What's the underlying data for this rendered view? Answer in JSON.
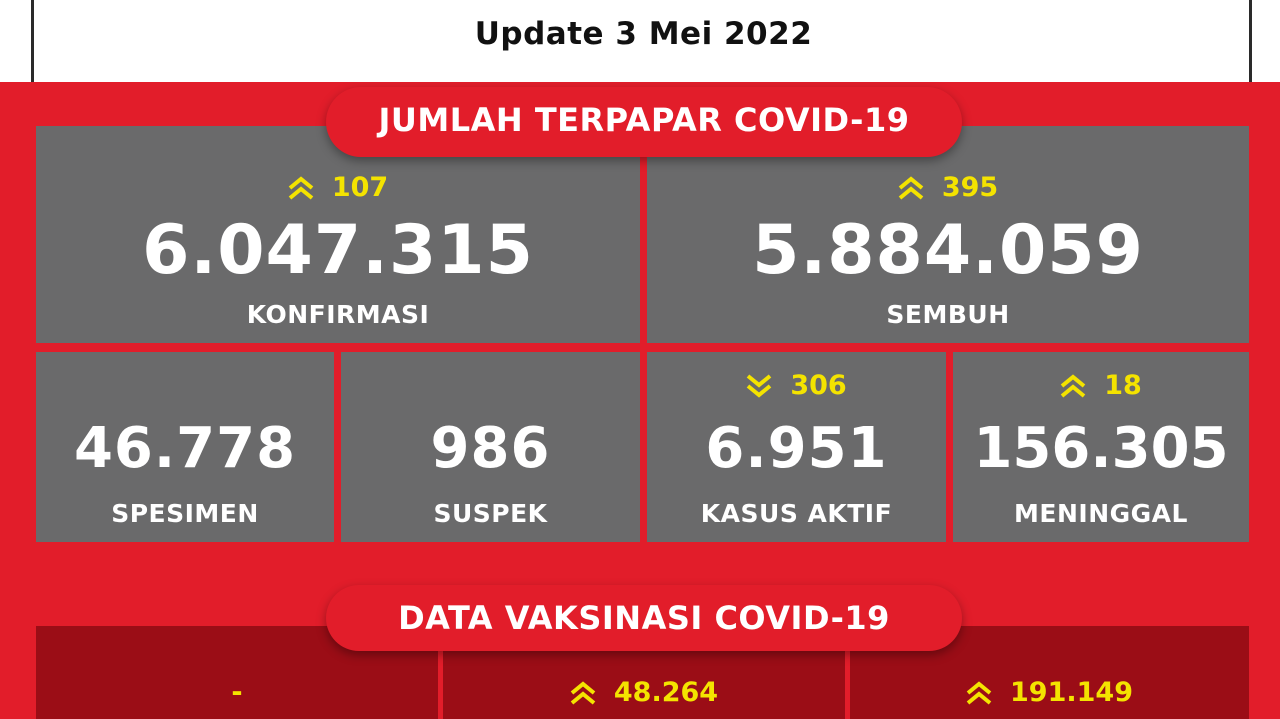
{
  "header": {
    "update": "Update 3 Mei 2022"
  },
  "section1": {
    "title": "JUMLAH TERPAPAR COVID-19"
  },
  "stats": {
    "konfirmasi": {
      "delta": "107",
      "arrow": "double-chevron-up-icon",
      "value": "6.047.315",
      "label": "KONFIRMASI"
    },
    "sembuh": {
      "delta": "395",
      "arrow": "double-chevron-up-icon",
      "value": "5.884.059",
      "label": "SEMBUH"
    },
    "spesimen": {
      "value": "46.778",
      "label": "SPESIMEN"
    },
    "suspek": {
      "value": "986",
      "label": "SUSPEK"
    },
    "kasus_aktif": {
      "delta": "306",
      "arrow": "double-chevron-down-icon",
      "value": "6.951",
      "label": "KASUS AKTIF"
    },
    "meninggal": {
      "delta": "18",
      "arrow": "double-chevron-up-icon",
      "value": "156.305",
      "label": "MENINGGAL"
    }
  },
  "section2": {
    "title": "DATA VAKSINASI COVID-19"
  },
  "vaccine": {
    "col1": {
      "delta": "-"
    },
    "col2": {
      "delta": "48.264",
      "arrow": "double-chevron-up-icon"
    },
    "col3": {
      "delta": "191.149",
      "arrow": "double-chevron-up-icon"
    }
  },
  "colors": {
    "red": "#e21d2a",
    "dark_red": "#9b0d16",
    "card_gray": "#6a6a6b",
    "delta_yellow": "#f4e300",
    "text_white": "#ffffff"
  }
}
